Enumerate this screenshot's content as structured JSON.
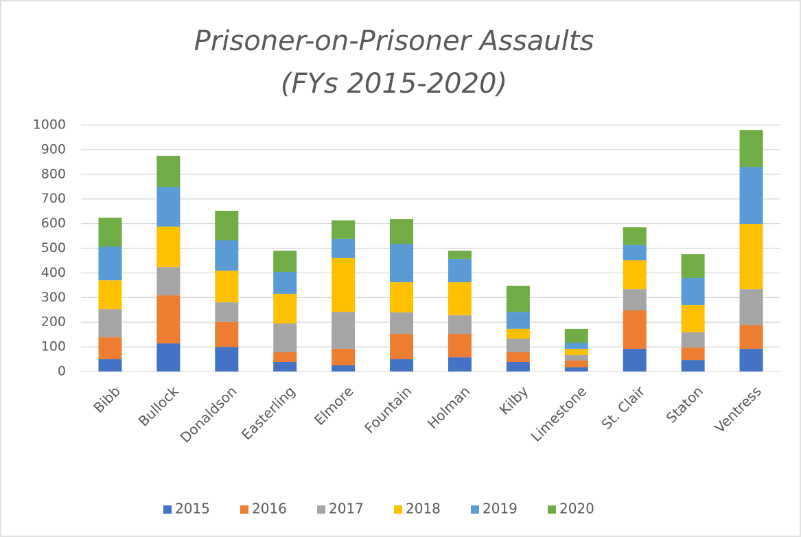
{
  "chart_data": {
    "type": "bar",
    "stacked": true,
    "title": [
      "Prisoner-on-Prisoner Assaults",
      "(FYs 2015-2020)"
    ],
    "categories": [
      "Bibb",
      "Bullock",
      "Donaldson",
      "Easterling",
      "Elmore",
      "Fountain",
      "Holman",
      "Kilby",
      "Limestone",
      "St. Clair",
      "Staton",
      "Ventress"
    ],
    "series": [
      {
        "name": "2015",
        "color": "#4472c4",
        "values": [
          50,
          114,
          100,
          39,
          25,
          50,
          58,
          39,
          17,
          92,
          47,
          92
        ]
      },
      {
        "name": "2016",
        "color": "#ed7d31",
        "values": [
          89,
          195,
          101,
          39,
          67,
          103,
          95,
          39,
          28,
          156,
          50,
          97
        ]
      },
      {
        "name": "2017",
        "color": "#a5a5a5",
        "values": [
          114,
          114,
          80,
          117,
          150,
          87,
          75,
          56,
          22,
          86,
          62,
          145
        ]
      },
      {
        "name": "2018",
        "color": "#ffc000",
        "values": [
          117,
          165,
          128,
          120,
          218,
          122,
          134,
          39,
          25,
          117,
          111,
          265
        ]
      },
      {
        "name": "2019",
        "color": "#5b9bd5",
        "values": [
          137,
          161,
          123,
          89,
          78,
          156,
          95,
          69,
          25,
          62,
          109,
          231
        ]
      },
      {
        "name": "2020",
        "color": "#70ad47",
        "values": [
          117,
          126,
          120,
          86,
          75,
          100,
          33,
          106,
          56,
          72,
          97,
          150
        ]
      }
    ],
    "ylim": [
      0,
      1000
    ],
    "yticks": [
      0,
      100,
      200,
      300,
      400,
      500,
      600,
      700,
      800,
      900,
      1000
    ],
    "grid": true,
    "legend": "bottom"
  }
}
